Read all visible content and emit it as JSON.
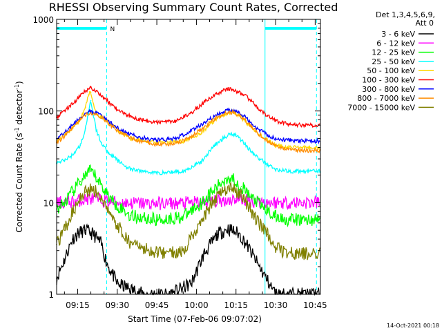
{
  "colors": {
    "background": "#ffffff",
    "axes": "#000000",
    "text": "#000000",
    "attenuator_marker": "#00ffff"
  },
  "chart_data": {
    "type": "line",
    "title": "RHESSI Observing Summary Count Rates, Corrected",
    "xlabel": "Start Time (07-Feb-06 09:07:02)",
    "ylabel_main": "Corrected Count Rate (s",
    "ylabel_sup1": "-1",
    "ylabel_mid": " detector",
    "ylabel_sup2": "-1",
    "ylabel_end": ")",
    "yscale": "log",
    "ylim": [
      1,
      1000
    ],
    "xlim": [
      "09:07:02",
      "10:47:00"
    ],
    "xticks": [
      "09:15",
      "09:30",
      "09:45",
      "10:00",
      "10:15",
      "10:30",
      "10:45"
    ],
    "xtick_minutes": [
      15,
      30,
      45,
      60,
      75,
      90,
      105
    ],
    "yticks": [
      "1",
      "10",
      "100",
      "1000"
    ],
    "ytick_values": [
      1,
      10,
      100,
      1000
    ],
    "legend_header": [
      "Det 1,3,4,5,6,9,",
      "Att 0"
    ],
    "legend_position": "right",
    "annotations": {
      "marker_label": "N",
      "dashed_vertical_lines": [
        "09:26:00",
        "10:45:30"
      ],
      "solid_vertical_lines": [
        "10:26:00"
      ],
      "attenuator_bars": [
        [
          "09:07:02",
          "09:26:00"
        ],
        [
          "10:26:00",
          "10:45:30"
        ]
      ]
    },
    "timestamp": "14-Oct-2021 00:18",
    "series": [
      {
        "name": "3 - 6 keV",
        "color": "#000000",
        "x": [
          7,
          10,
          13,
          15,
          18,
          21,
          24,
          26,
          30,
          40,
          50,
          58,
          63,
          68,
          72,
          76,
          79,
          83,
          87,
          90
        ],
        "y": [
          1.5,
          2.4,
          4.0,
          4.6,
          5.0,
          4.5,
          3.5,
          2.2,
          1.3,
          1,
          1,
          1.3,
          2.8,
          4.5,
          5.2,
          4.6,
          3.5,
          2.2,
          1.4,
          1
        ]
      },
      {
        "name": "6 - 12 keV",
        "color": "#ff00ff",
        "x": [
          7,
          10,
          15,
          20,
          25,
          30,
          40,
          50,
          60,
          70,
          75,
          80,
          90,
          100,
          105
        ],
        "y": [
          10,
          10,
          10.5,
          11,
          10.5,
          10,
          9.8,
          9.8,
          10,
          10.5,
          11,
          10.5,
          10,
          10,
          10
        ]
      },
      {
        "name": "12 - 25 keV",
        "color": "#00ff00",
        "x": [
          7,
          10,
          13,
          16,
          18,
          20,
          22,
          25,
          28,
          35,
          45,
          55,
          62,
          67,
          70,
          72,
          74,
          77,
          80,
          85,
          90,
          95,
          100,
          105
        ],
        "y": [
          8.5,
          10,
          13,
          17,
          20,
          22,
          19,
          14,
          10.5,
          7.2,
          6.5,
          7,
          10,
          14,
          17,
          19,
          18,
          15,
          12,
          9,
          7,
          6.5,
          6.5,
          6.5
        ]
      },
      {
        "name": "25 - 50 keV",
        "color": "#00ffff",
        "x": [
          7,
          10,
          13,
          16,
          18,
          19,
          20,
          21,
          22,
          24,
          26,
          30,
          35,
          45,
          55,
          62,
          66,
          70,
          73,
          75,
          78,
          82,
          87,
          90,
          95,
          100,
          105
        ],
        "y": [
          27,
          29,
          33,
          42,
          65,
          90,
          130,
          90,
          62,
          45,
          37,
          29,
          23,
          21,
          22,
          28,
          40,
          50,
          57,
          55,
          45,
          33,
          26,
          23,
          22,
          22,
          22
        ]
      },
      {
        "name": "50 - 100 keV",
        "color": "#ffd700",
        "x": [
          7,
          10,
          13,
          16,
          18,
          19,
          20,
          21,
          22,
          24,
          27,
          30,
          35,
          45,
          55,
          62,
          66,
          70,
          73,
          75,
          78,
          82,
          87,
          90,
          95,
          100,
          105
        ],
        "y": [
          47,
          55,
          65,
          80,
          110,
          150,
          160,
          120,
          95,
          85,
          75,
          62,
          50,
          45,
          47,
          58,
          75,
          90,
          98,
          95,
          80,
          60,
          48,
          42,
          40,
          40,
          40
        ]
      },
      {
        "name": "100 - 300 keV",
        "color": "#ff0000",
        "x": [
          7,
          10,
          13,
          16,
          18,
          20,
          22,
          25,
          28,
          32,
          38,
          45,
          52,
          58,
          63,
          67,
          70,
          72,
          74,
          76,
          78,
          80,
          83,
          87,
          90,
          95,
          100,
          105
        ],
        "y": [
          85,
          100,
          120,
          145,
          165,
          180,
          165,
          140,
          115,
          95,
          82,
          75,
          78,
          95,
          125,
          150,
          165,
          175,
          170,
          160,
          150,
          135,
          110,
          88,
          78,
          72,
          70,
          70
        ]
      },
      {
        "name": "300 - 800 keV",
        "color": "#0000ff",
        "x": [
          7,
          10,
          13,
          16,
          18,
          20,
          22,
          25,
          28,
          32,
          38,
          45,
          52,
          58,
          63,
          67,
          70,
          72,
          74,
          76,
          78,
          80,
          83,
          87,
          90,
          95,
          100,
          105
        ],
        "y": [
          50,
          58,
          70,
          85,
          95,
          100,
          95,
          85,
          72,
          60,
          52,
          48,
          50,
          60,
          75,
          88,
          97,
          102,
          100,
          95,
          88,
          78,
          65,
          55,
          50,
          48,
          47,
          47
        ]
      },
      {
        "name": "800 - 7000 keV",
        "color": "#ff8c00",
        "x": [
          7,
          10,
          13,
          16,
          18,
          20,
          22,
          25,
          28,
          32,
          38,
          45,
          52,
          58,
          63,
          67,
          70,
          72,
          74,
          76,
          78,
          80,
          83,
          87,
          90,
          95,
          100,
          105
        ],
        "y": [
          45,
          53,
          65,
          80,
          90,
          96,
          92,
          82,
          68,
          56,
          47,
          43,
          44,
          52,
          67,
          82,
          92,
          97,
          96,
          90,
          82,
          72,
          58,
          47,
          42,
          38,
          37,
          37
        ]
      },
      {
        "name": "7000 - 15000 keV",
        "color": "#808000",
        "x": [
          7,
          10,
          13,
          16,
          18,
          20,
          22,
          25,
          28,
          35,
          45,
          55,
          62,
          66,
          70,
          73,
          75,
          78,
          82,
          87,
          90,
          95,
          100,
          105
        ],
        "y": [
          3.5,
          5,
          8,
          11,
          13,
          14,
          13,
          10,
          7,
          3.5,
          2.8,
          3,
          6.5,
          10,
          13,
          14,
          13.5,
          11,
          7,
          4.5,
          3.2,
          2.8,
          2.8,
          2.8
        ]
      }
    ]
  }
}
